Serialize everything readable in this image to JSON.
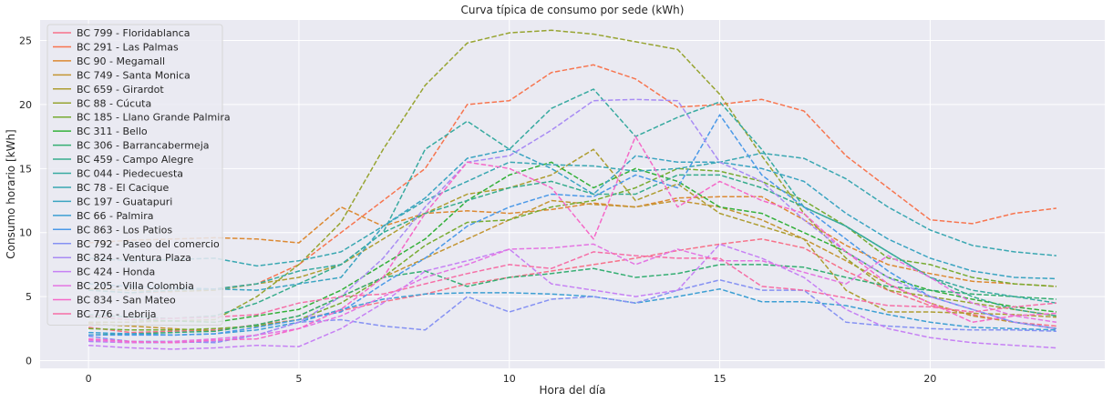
{
  "chart_data": {
    "type": "line",
    "title": "Curva típica de consumo por sede (kWh)",
    "xlabel": "Hora del día",
    "ylabel": "Consumo horario [kWh]",
    "xlim": [
      -1.15,
      24.15
    ],
    "ylim": [
      -0.6,
      26.6
    ],
    "xticks": [
      0,
      5,
      10,
      15,
      20
    ],
    "yticks": [
      0,
      5,
      10,
      15,
      20,
      25
    ],
    "grid": true,
    "background": "#eaeaf2",
    "line_style": "dashed",
    "legend_position": "top-left",
    "x": [
      0,
      1,
      2,
      3,
      4,
      5,
      6,
      7,
      8,
      9,
      10,
      11,
      12,
      13,
      14,
      15,
      16,
      17,
      18,
      19,
      20,
      21,
      22,
      23
    ],
    "series": [
      {
        "name": "BC 799 - Floridablanca",
        "color": "#f77189",
        "values": [
          2.6,
          2.2,
          2.3,
          2.4,
          2.8,
          3.2,
          3.9,
          4.6,
          5.2,
          6.0,
          6.5,
          7.0,
          7.5,
          8.0,
          8.6,
          9.1,
          9.5,
          8.8,
          7.0,
          5.5,
          4.3,
          3.6,
          3.0,
          2.7
        ]
      },
      {
        "name": "BC 291 - Las Palmas",
        "color": "#f7754f",
        "values": [
          5.5,
          5.3,
          5.4,
          5.6,
          6.0,
          7.5,
          10.0,
          12.5,
          15.0,
          20.0,
          20.3,
          22.5,
          23.1,
          22.0,
          19.8,
          20.0,
          20.4,
          19.5,
          16.0,
          13.5,
          11.0,
          10.7,
          11.5,
          11.9
        ]
      },
      {
        "name": "BC 90 - Megamall",
        "color": "#dc8932",
        "values": [
          9.2,
          9.4,
          9.5,
          9.6,
          9.5,
          9.2,
          12.0,
          10.5,
          11.5,
          11.7,
          11.5,
          11.8,
          12.3,
          12.0,
          12.7,
          12.8,
          12.8,
          11.0,
          9.0,
          7.5,
          6.8,
          6.2,
          6.0,
          5.8
        ]
      },
      {
        "name": "BC 749 - Santa Monica",
        "color": "#c39532",
        "values": [
          2.9,
          2.7,
          2.5,
          2.3,
          2.8,
          3.5,
          5.0,
          6.5,
          8.0,
          9.5,
          11.0,
          12.5,
          12.2,
          12.0,
          12.5,
          12.0,
          11.0,
          9.5,
          7.8,
          6.0,
          4.5,
          3.5,
          3.0,
          2.5
        ]
      },
      {
        "name": "BC 659 - Girardot",
        "color": "#ae9d31",
        "values": [
          5.6,
          5.5,
          5.4,
          5.5,
          6.0,
          6.5,
          7.5,
          9.5,
          11.5,
          13.0,
          13.5,
          14.5,
          16.5,
          12.5,
          13.8,
          11.5,
          10.5,
          9.5,
          5.5,
          3.8,
          3.8,
          3.7,
          3.6,
          3.4
        ]
      },
      {
        "name": "BC 88 - Cúcuta",
        "color": "#97a431",
        "values": [
          3.0,
          3.0,
          3.1,
          3.2,
          5.0,
          7.5,
          10.8,
          16.5,
          21.5,
          24.8,
          25.6,
          25.8,
          25.5,
          24.9,
          24.3,
          20.8,
          16.0,
          11.5,
          8.0,
          5.5,
          5.0,
          4.5,
          4.0,
          3.5
        ]
      },
      {
        "name": "BC 185 - Llano Grande Palmira",
        "color": "#77ab31",
        "values": [
          2.5,
          2.4,
          2.4,
          2.5,
          2.7,
          3.2,
          4.5,
          6.5,
          9.0,
          10.8,
          11.0,
          12.0,
          12.5,
          13.5,
          15.0,
          14.8,
          14.0,
          12.5,
          10.5,
          8.0,
          7.5,
          6.5,
          6.0,
          5.8
        ]
      },
      {
        "name": "BC 311 - Bello",
        "color": "#33b039",
        "values": [
          3.4,
          3.2,
          3.1,
          3.0,
          3.5,
          4.0,
          5.5,
          7.5,
          9.5,
          12.5,
          14.5,
          15.5,
          13.5,
          15.0,
          14.0,
          12.0,
          11.5,
          10.0,
          8.5,
          6.5,
          5.5,
          4.8,
          4.2,
          3.8
        ]
      },
      {
        "name": "BC 306 - Barrancabermeja",
        "color": "#34ae72",
        "values": [
          2.0,
          2.1,
          2.2,
          2.3,
          2.8,
          3.5,
          5.0,
          6.5,
          7.0,
          5.8,
          6.5,
          6.8,
          7.2,
          6.5,
          6.8,
          7.5,
          7.5,
          7.3,
          6.5,
          5.8,
          5.5,
          5.2,
          5.0,
          4.8
        ]
      },
      {
        "name": "BC 459 - Campo Alegre",
        "color": "#36ac8c",
        "values": [
          3.6,
          3.4,
          3.3,
          3.5,
          4.5,
          6.0,
          7.5,
          10.0,
          11.5,
          12.5,
          13.5,
          14.0,
          13.0,
          13.0,
          14.5,
          14.5,
          13.5,
          12.0,
          10.5,
          8.5,
          6.5,
          5.0,
          4.0,
          3.5
        ]
      },
      {
        "name": "BC 044 - Piedecuesta",
        "color": "#37aaa0",
        "values": [
          5.5,
          5.3,
          5.5,
          5.6,
          6.0,
          7.0,
          7.5,
          10.0,
          16.5,
          18.7,
          16.5,
          19.7,
          21.2,
          17.5,
          19.0,
          20.2,
          16.5,
          12.0,
          10.5,
          8.5,
          6.5,
          5.5,
          5.0,
          4.5
        ]
      },
      {
        "name": "BC 78 - El Cacique",
        "color": "#39a7b1",
        "values": [
          8.0,
          7.8,
          7.9,
          8.0,
          7.4,
          7.8,
          8.5,
          10.5,
          12.5,
          14.0,
          15.5,
          15.3,
          15.2,
          14.8,
          15.0,
          15.5,
          16.2,
          15.8,
          14.2,
          12.0,
          10.2,
          9.0,
          8.5,
          8.2
        ]
      },
      {
        "name": "BC 197 - Guatapuri",
        "color": "#3aa4c1",
        "values": [
          6.0,
          5.8,
          5.7,
          5.6,
          5.5,
          6.0,
          6.5,
          10.5,
          12.7,
          15.8,
          16.5,
          15.0,
          13.0,
          16.0,
          15.5,
          15.5,
          15.0,
          14.0,
          11.5,
          9.5,
          8.0,
          7.0,
          6.5,
          6.4
        ]
      },
      {
        "name": "BC 66 - Palmira",
        "color": "#3c9fd3",
        "values": [
          2.2,
          2.1,
          2.0,
          2.1,
          2.4,
          3.0,
          4.0,
          4.8,
          5.2,
          5.3,
          5.3,
          5.2,
          5.0,
          4.5,
          5.0,
          5.6,
          4.6,
          4.6,
          4.3,
          3.6,
          3.0,
          2.6,
          2.5,
          2.4
        ]
      },
      {
        "name": "BC 863 - Los Patios",
        "color": "#4b99e8",
        "values": [
          2.0,
          2.0,
          2.0,
          2.1,
          2.6,
          3.2,
          3.8,
          6.0,
          8.0,
          10.5,
          12.0,
          13.0,
          12.8,
          14.5,
          13.5,
          19.2,
          14.5,
          12.0,
          9.5,
          7.0,
          5.0,
          4.0,
          3.0,
          2.5
        ]
      },
      {
        "name": "BC 792 - Paseo del comercio",
        "color": "#8591f3",
        "values": [
          1.9,
          1.5,
          1.5,
          1.4,
          2.0,
          3.0,
          3.2,
          2.7,
          2.4,
          5.0,
          3.8,
          4.8,
          5.0,
          4.5,
          5.5,
          6.3,
          5.5,
          5.5,
          3.0,
          2.7,
          2.5,
          2.4,
          2.4,
          2.3
        ]
      },
      {
        "name": "BC 824 - Ventura Plaza",
        "color": "#a88bf4",
        "values": [
          1.5,
          1.4,
          1.4,
          1.5,
          2.0,
          3.0,
          5.0,
          8.0,
          12.0,
          15.5,
          16.0,
          18.0,
          20.3,
          20.4,
          20.3,
          15.5,
          14.0,
          11.0,
          8.5,
          6.5,
          5.0,
          4.0,
          3.0,
          2.5
        ]
      },
      {
        "name": "BC 424 - Honda",
        "color": "#c680f4",
        "values": [
          1.2,
          1.0,
          0.9,
          1.0,
          1.2,
          1.1,
          2.5,
          4.5,
          7.0,
          7.8,
          8.7,
          6.0,
          5.5,
          5.0,
          5.5,
          9.1,
          8.0,
          6.5,
          4.0,
          2.5,
          1.8,
          1.4,
          1.2,
          1.0
        ]
      },
      {
        "name": "BC 205 - Villa Colombia",
        "color": "#e474e2",
        "values": [
          1.6,
          1.4,
          1.5,
          1.7,
          2.0,
          2.5,
          3.5,
          5.0,
          6.5,
          7.5,
          8.7,
          8.8,
          9.1,
          7.5,
          8.7,
          7.8,
          7.8,
          6.9,
          6.0,
          8.2,
          6.5,
          4.5,
          3.5,
          3.0
        ]
      },
      {
        "name": "BC 834 - San Mateo",
        "color": "#f569c8",
        "values": [
          1.7,
          1.5,
          1.4,
          1.6,
          1.7,
          2.5,
          4.0,
          6.5,
          11.5,
          15.5,
          15.0,
          13.5,
          9.5,
          17.5,
          12.0,
          14.0,
          12.5,
          11.5,
          8.5,
          6.0,
          4.5,
          3.0,
          3.5,
          3.7
        ]
      },
      {
        "name": "BC 776 - Lebrija",
        "color": "#f66ea6",
        "values": [
          3.5,
          3.2,
          3.3,
          3.4,
          3.6,
          4.5,
          5.0,
          5.2,
          6.0,
          6.8,
          7.5,
          7.2,
          8.5,
          8.2,
          8.0,
          8.0,
          5.8,
          5.5,
          4.9,
          4.3,
          4.2,
          3.8,
          4.2,
          4.5
        ]
      }
    ]
  }
}
